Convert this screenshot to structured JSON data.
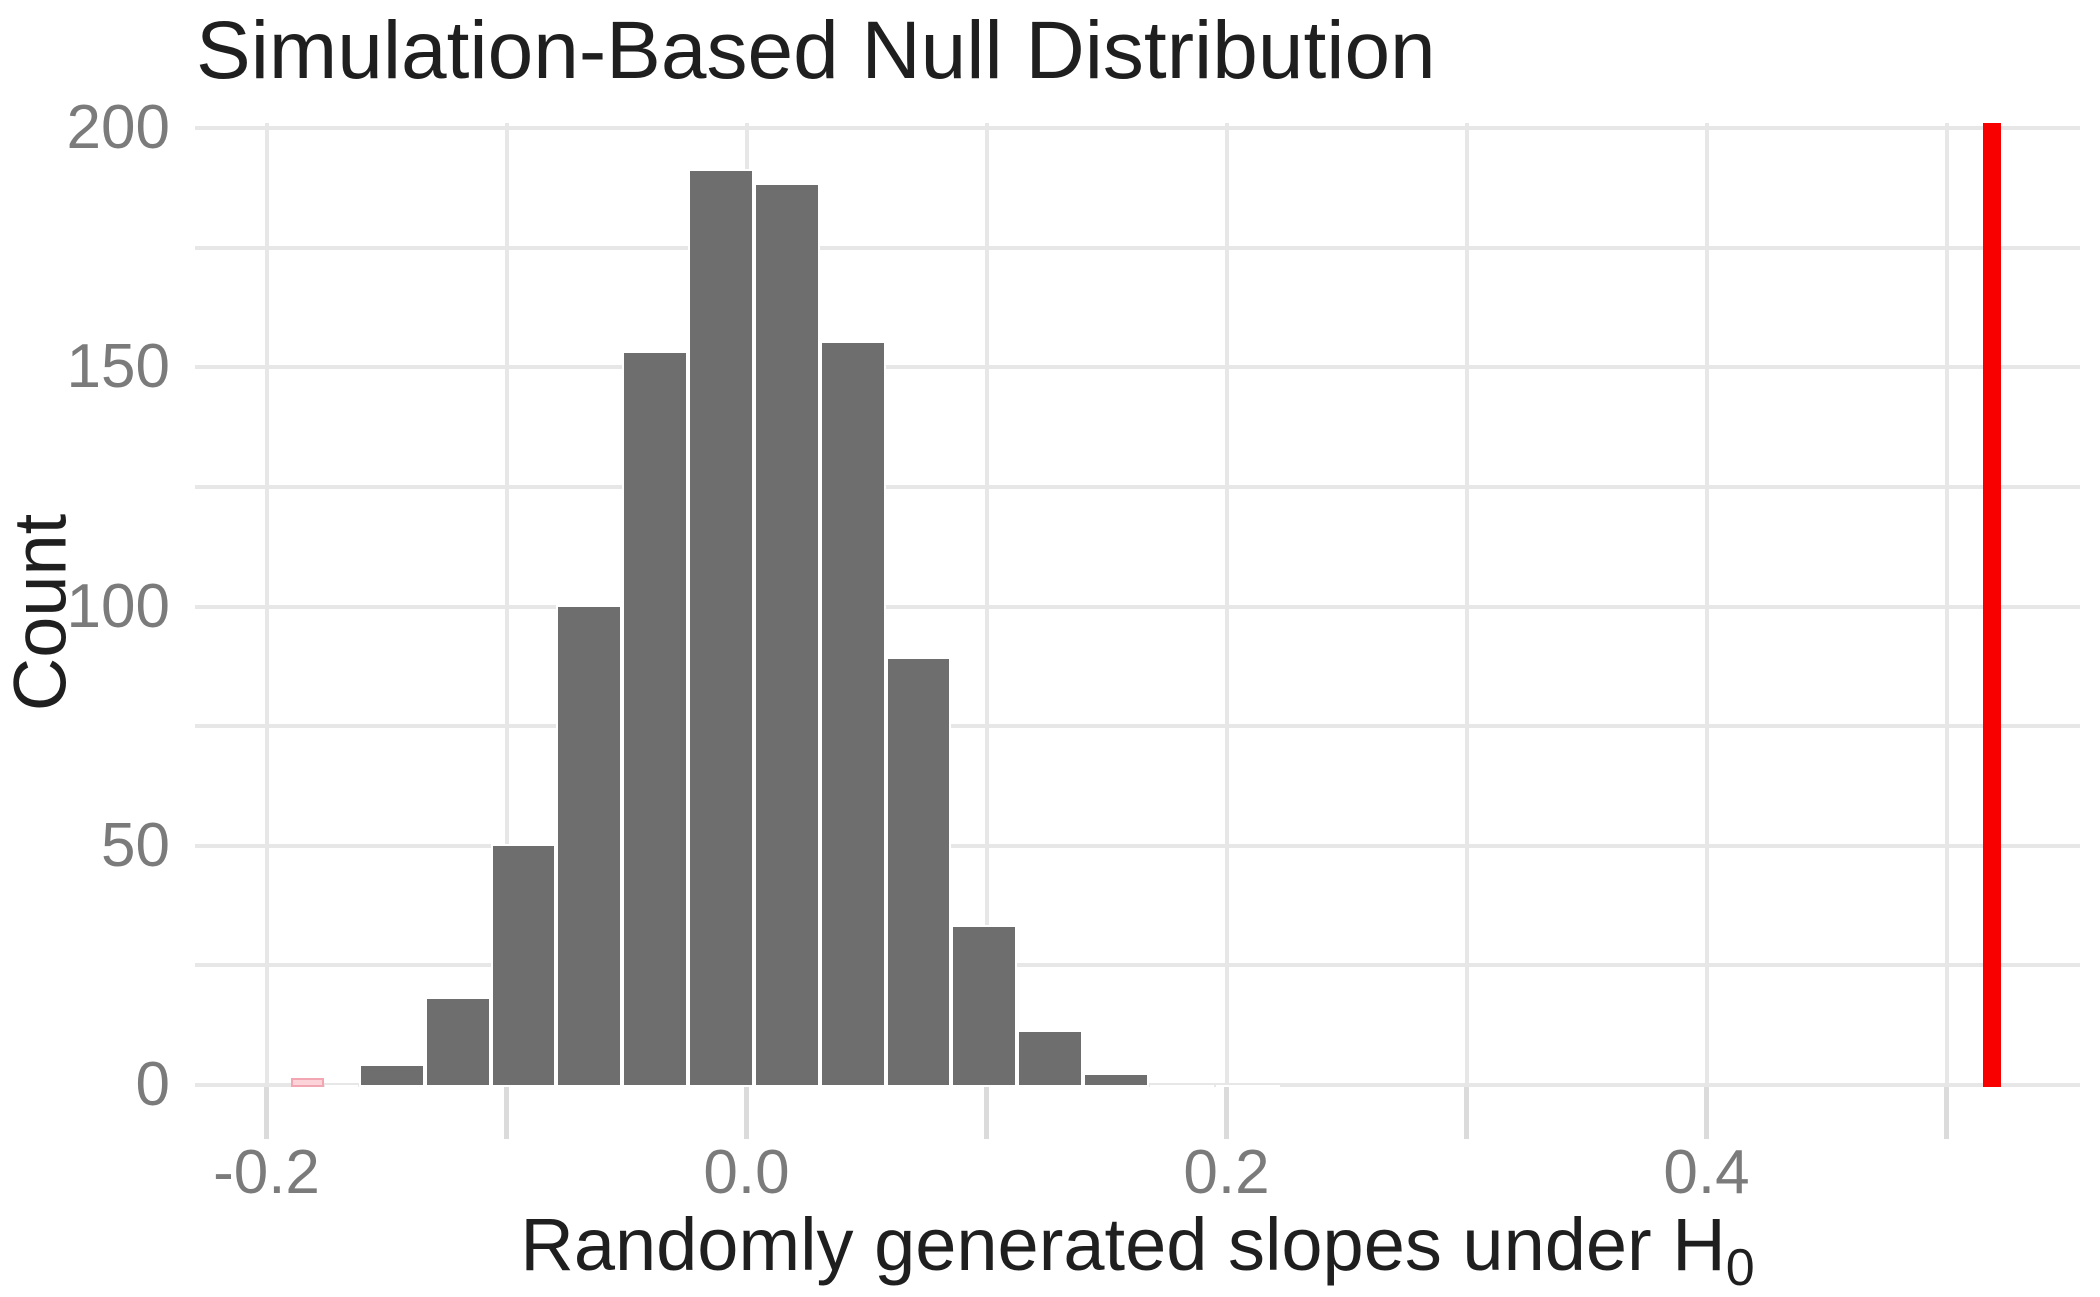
{
  "title": "Simulation-Based Null Distribution",
  "y_axis": {
    "label": "Count",
    "tick_values": [
      0,
      50,
      100,
      150,
      200
    ],
    "tick_labels": [
      "0",
      "50",
      "100",
      "150",
      "200"
    ]
  },
  "x_axis": {
    "label_main": "Randomly generated slopes under H",
    "label_subscript": "0",
    "major_tick_values": [
      -0.2,
      0.0,
      0.2,
      0.4
    ],
    "major_tick_labels": [
      "-0.2",
      "0.0",
      "0.2",
      "0.4"
    ]
  },
  "chart_data": {
    "type": "bar",
    "subtype": "histogram",
    "title": "Simulation-Based Null Distribution",
    "xlabel": "Randomly generated slopes under H0",
    "ylabel": "Count",
    "xlim": [
      -0.23,
      0.556
    ],
    "ylim": [
      0,
      201
    ],
    "grid": "on",
    "legend": "none",
    "x_gridline_values": [
      -0.2,
      -0.1,
      0.0,
      0.1,
      0.2,
      0.3,
      0.4,
      0.5
    ],
    "y_gridline_values": [
      0,
      25,
      50,
      75,
      100,
      125,
      150,
      175,
      200
    ],
    "x_axis_tick_values": [
      -0.2,
      -0.1,
      0.0,
      0.1,
      0.2,
      0.3,
      0.4,
      0.5
    ],
    "bins": [
      {
        "x0": -0.19,
        "x1": -0.176,
        "count": 1,
        "highlight": "pink"
      },
      {
        "x0": -0.176,
        "x1": -0.1615,
        "count": 0,
        "highlight": null
      },
      {
        "x0": -0.1615,
        "x1": -0.1341,
        "count": 4,
        "highlight": null
      },
      {
        "x0": -0.1341,
        "x1": -0.1066,
        "count": 18,
        "highlight": null
      },
      {
        "x0": -0.1066,
        "x1": -0.0792,
        "count": 50,
        "highlight": null
      },
      {
        "x0": -0.0792,
        "x1": -0.0518,
        "count": 100,
        "highlight": null
      },
      {
        "x0": -0.0518,
        "x1": -0.0243,
        "count": 153,
        "highlight": null
      },
      {
        "x0": -0.0243,
        "x1": 0.0031,
        "count": 191,
        "highlight": null
      },
      {
        "x0": 0.0031,
        "x1": 0.0305,
        "count": 188,
        "highlight": null
      },
      {
        "x0": 0.0305,
        "x1": 0.058,
        "count": 155,
        "highlight": null
      },
      {
        "x0": 0.058,
        "x1": 0.0854,
        "count": 89,
        "highlight": null
      },
      {
        "x0": 0.0854,
        "x1": 0.1128,
        "count": 33,
        "highlight": null
      },
      {
        "x0": 0.1128,
        "x1": 0.1403,
        "count": 11,
        "highlight": null
      },
      {
        "x0": 0.1403,
        "x1": 0.1677,
        "count": 2,
        "highlight": null
      },
      {
        "x0": 0.1677,
        "x1": 0.1951,
        "count": 0,
        "highlight": null
      },
      {
        "x0": 0.1951,
        "x1": 0.2226,
        "count": 0,
        "highlight": null
      }
    ],
    "observed_stat": 0.519
  },
  "colors": {
    "background": "#ffffff",
    "bar_fill": "#6e6e6e",
    "bar_border": "#ffffff",
    "pink_fill": "#fbd3d9",
    "pink_border": "#f2a6b1",
    "observed_line": "#f80000",
    "gridline": "#e7e7e7",
    "tick_mark": "#dbdbdb",
    "tick_label": "#7b7b7b",
    "text": "#1f1f1f"
  }
}
